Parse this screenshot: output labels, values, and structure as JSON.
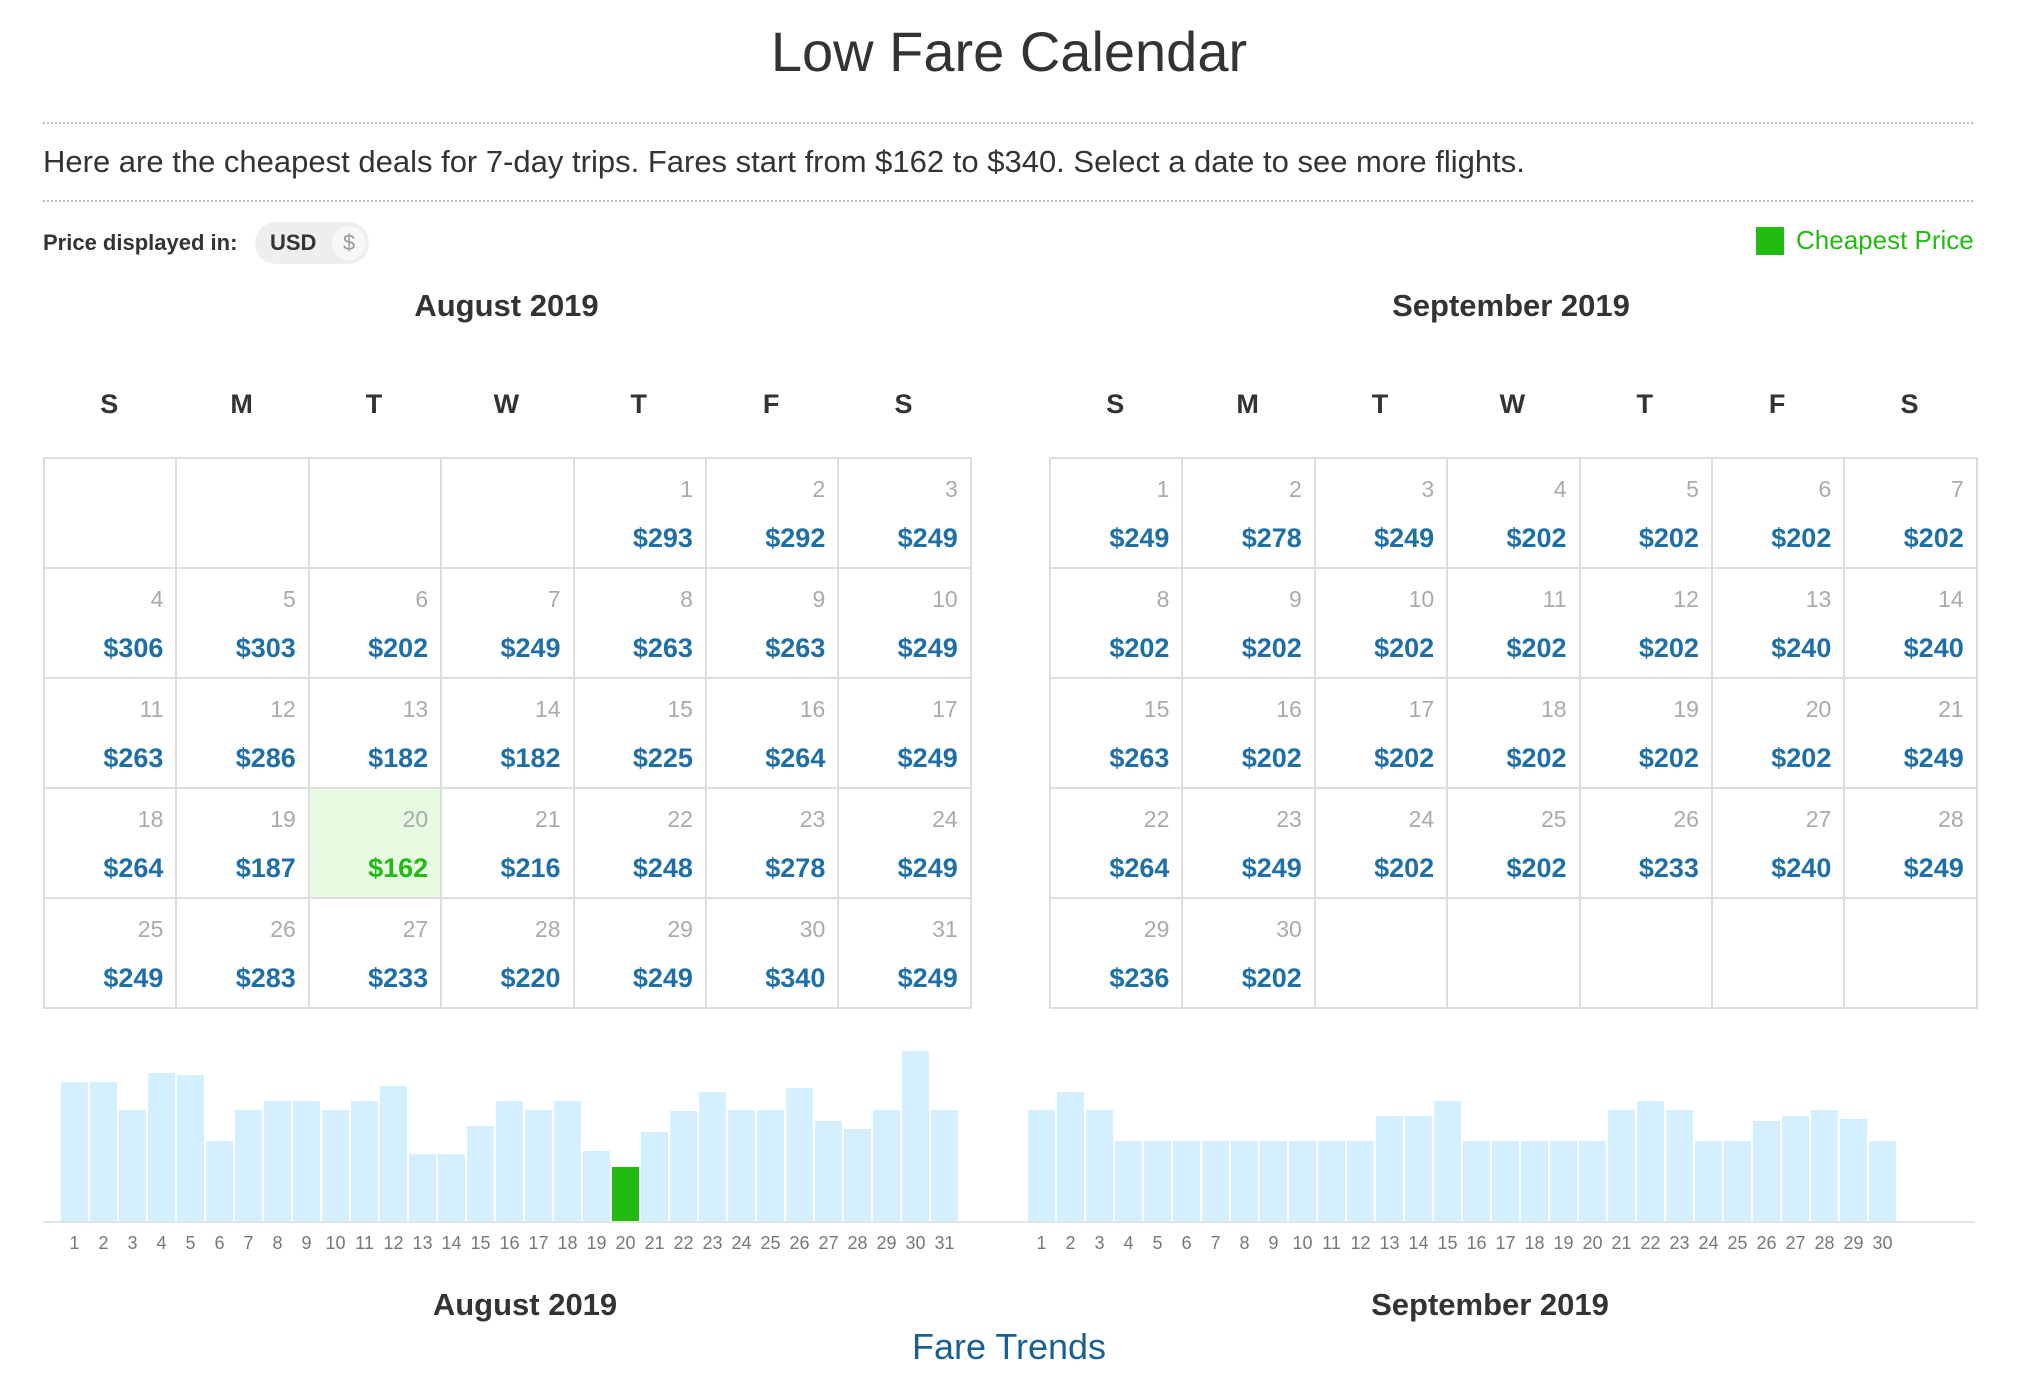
{
  "title": "Low Fare Calendar",
  "intro": "Here are the cheapest deals for 7-day trips. Fares start from $162 to $340. Select a date to see more flights.",
  "currency": {
    "label": "Price displayed in:",
    "code": "USD",
    "symbol": "$"
  },
  "legend": {
    "label": "Cheapest Price",
    "color": "#22bb11"
  },
  "colors": {
    "price": "#1e6fa8",
    "cheapest": "#22bb11",
    "cheapest_bg": "#e6fbe2",
    "bar": "#d4efff"
  },
  "weekdays": [
    "S",
    "M",
    "T",
    "W",
    "T",
    "F",
    "S"
  ],
  "months": [
    {
      "name": "August 2019",
      "start_offset": 4,
      "days": [
        {
          "day": "1",
          "price": "$293"
        },
        {
          "day": "2",
          "price": "$292"
        },
        {
          "day": "3",
          "price": "$249"
        },
        {
          "day": "4",
          "price": "$306"
        },
        {
          "day": "5",
          "price": "$303"
        },
        {
          "day": "6",
          "price": "$202"
        },
        {
          "day": "7",
          "price": "$249"
        },
        {
          "day": "8",
          "price": "$263"
        },
        {
          "day": "9",
          "price": "$263"
        },
        {
          "day": "10",
          "price": "$249"
        },
        {
          "day": "11",
          "price": "$263"
        },
        {
          "day": "12",
          "price": "$286"
        },
        {
          "day": "13",
          "price": "$182"
        },
        {
          "day": "14",
          "price": "$182"
        },
        {
          "day": "15",
          "price": "$225"
        },
        {
          "day": "16",
          "price": "$264"
        },
        {
          "day": "17",
          "price": "$249"
        },
        {
          "day": "18",
          "price": "$264"
        },
        {
          "day": "19",
          "price": "$187"
        },
        {
          "day": "20",
          "price": "$162",
          "cheapest": true
        },
        {
          "day": "21",
          "price": "$216"
        },
        {
          "day": "22",
          "price": "$248"
        },
        {
          "day": "23",
          "price": "$278"
        },
        {
          "day": "24",
          "price": "$249"
        },
        {
          "day": "25",
          "price": "$249"
        },
        {
          "day": "26",
          "price": "$283"
        },
        {
          "day": "27",
          "price": "$233"
        },
        {
          "day": "28",
          "price": "$220"
        },
        {
          "day": "29",
          "price": "$249"
        },
        {
          "day": "30",
          "price": "$340"
        },
        {
          "day": "31",
          "price": "$249"
        }
      ]
    },
    {
      "name": "September 2019",
      "start_offset": 0,
      "days": [
        {
          "day": "1",
          "price": "$249"
        },
        {
          "day": "2",
          "price": "$278"
        },
        {
          "day": "3",
          "price": "$249"
        },
        {
          "day": "4",
          "price": "$202"
        },
        {
          "day": "5",
          "price": "$202"
        },
        {
          "day": "6",
          "price": "$202"
        },
        {
          "day": "7",
          "price": "$202"
        },
        {
          "day": "8",
          "price": "$202"
        },
        {
          "day": "9",
          "price": "$202"
        },
        {
          "day": "10",
          "price": "$202"
        },
        {
          "day": "11",
          "price": "$202"
        },
        {
          "day": "12",
          "price": "$202"
        },
        {
          "day": "13",
          "price": "$240"
        },
        {
          "day": "14",
          "price": "$240"
        },
        {
          "day": "15",
          "price": "$263"
        },
        {
          "day": "16",
          "price": "$202"
        },
        {
          "day": "17",
          "price": "$202"
        },
        {
          "day": "18",
          "price": "$202"
        },
        {
          "day": "19",
          "price": "$202"
        },
        {
          "day": "20",
          "price": "$202"
        },
        {
          "day": "21",
          "price": "$249"
        },
        {
          "day": "22",
          "price": "$264"
        },
        {
          "day": "23",
          "price": "$249"
        },
        {
          "day": "24",
          "price": "$202"
        },
        {
          "day": "25",
          "price": "$202"
        },
        {
          "day": "26",
          "price": "$233"
        },
        {
          "day": "27",
          "price": "$240"
        },
        {
          "day": "28",
          "price": "$249"
        },
        {
          "day": "29",
          "price": "$236"
        },
        {
          "day": "30",
          "price": "$202"
        }
      ]
    }
  ],
  "chart_data": [
    {
      "type": "bar",
      "title": "August 2019",
      "categories": [
        "1",
        "2",
        "3",
        "4",
        "5",
        "6",
        "7",
        "8",
        "9",
        "10",
        "11",
        "12",
        "13",
        "14",
        "15",
        "16",
        "17",
        "18",
        "19",
        "20",
        "21",
        "22",
        "23",
        "24",
        "25",
        "26",
        "27",
        "28",
        "29",
        "30",
        "31"
      ],
      "values": [
        293,
        292,
        249,
        306,
        303,
        202,
        249,
        263,
        263,
        249,
        263,
        286,
        182,
        182,
        225,
        264,
        249,
        264,
        187,
        162,
        216,
        248,
        278,
        249,
        249,
        283,
        233,
        220,
        249,
        340,
        249
      ],
      "highlight_index": 19
    },
    {
      "type": "bar",
      "title": "September 2019",
      "categories": [
        "1",
        "2",
        "3",
        "4",
        "5",
        "6",
        "7",
        "8",
        "9",
        "10",
        "11",
        "12",
        "13",
        "14",
        "15",
        "16",
        "17",
        "18",
        "19",
        "20",
        "21",
        "22",
        "23",
        "24",
        "25",
        "26",
        "27",
        "28",
        "29",
        "30"
      ],
      "values": [
        249,
        278,
        249,
        202,
        202,
        202,
        202,
        202,
        202,
        202,
        202,
        202,
        240,
        240,
        263,
        202,
        202,
        202,
        202,
        202,
        249,
        264,
        249,
        202,
        202,
        233,
        240,
        249,
        236,
        202
      ]
    }
  ],
  "footer_link": "Fare Trends"
}
